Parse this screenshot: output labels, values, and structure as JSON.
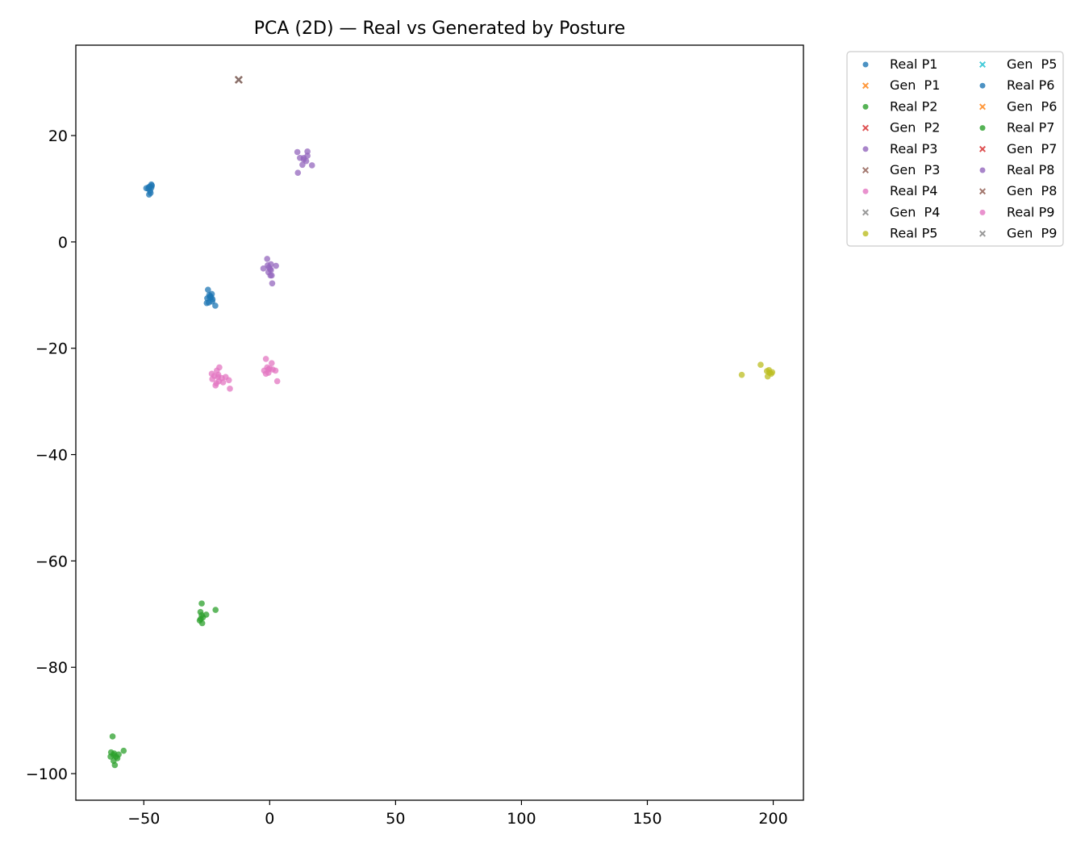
{
  "chart_data": {
    "type": "scatter",
    "title": "PCA (2D) — Real vs Generated by Posture",
    "xlabel": "",
    "ylabel": "",
    "xlim": [
      -77,
      212
    ],
    "ylim": [
      -105,
      37
    ],
    "xticks": [
      -50,
      0,
      50,
      100,
      150,
      200
    ],
    "yticks": [
      20,
      0,
      -20,
      -40,
      -60,
      -80,
      -100
    ],
    "grid": false,
    "legend_position": "outside-top-right",
    "series": [
      {
        "name": "Real P1",
        "marker": "circle",
        "color": "#1f77b4",
        "points": [
          [
            -49,
            10.1
          ],
          [
            -48,
            10.3
          ],
          [
            -47,
            10.8
          ],
          [
            -46.8,
            10.6
          ],
          [
            -47.5,
            9.6
          ],
          [
            -47.9,
            8.9
          ],
          [
            -47.3,
            9.2
          ],
          [
            -48.2,
            10
          ],
          [
            -47,
            10.2
          ],
          [
            -24.5,
            -9
          ],
          [
            -24,
            -10
          ],
          [
            -23.2,
            -10.4
          ],
          [
            -22.7,
            -10.8
          ],
          [
            -24.2,
            -11.4
          ],
          [
            -25,
            -11.5
          ],
          [
            -22.8,
            -11.2
          ],
          [
            -21.6,
            -12
          ],
          [
            -23.6,
            -10.2
          ],
          [
            -24.8,
            -10.6
          ],
          [
            -23,
            -9.8
          ]
        ]
      },
      {
        "name": "Gen  P1",
        "marker": "x",
        "color": "#ff7f0e",
        "points": [
          [
            -12.3,
            30.5
          ]
        ]
      },
      {
        "name": "Real P2",
        "marker": "circle",
        "color": "#2ca02c",
        "points": [
          [
            -27,
            -68
          ],
          [
            -21.5,
            -69.2
          ],
          [
            -27.5,
            -69.6
          ],
          [
            -26.5,
            -70.6
          ],
          [
            -25.2,
            -70.1
          ],
          [
            -27.8,
            -71.2
          ],
          [
            -26.8,
            -71.7
          ],
          [
            -27.4,
            -70.9
          ],
          [
            -62.4,
            -93
          ],
          [
            -58,
            -95.7
          ],
          [
            -63,
            -96
          ],
          [
            -62,
            -96.5
          ],
          [
            -61,
            -96.8
          ],
          [
            -60.5,
            -97.1
          ],
          [
            -62,
            -97.6
          ],
          [
            -61.5,
            -98.4
          ],
          [
            -63.2,
            -96.8
          ],
          [
            -60,
            -96.4
          ]
        ]
      },
      {
        "name": "Gen  P2",
        "marker": "x",
        "color": "#d62728",
        "points": [
          [
            -12.3,
            30.5
          ]
        ]
      },
      {
        "name": "Real P3",
        "marker": "circle",
        "color": "#9467bd",
        "points": [
          [
            11,
            16.9
          ],
          [
            15,
            17
          ],
          [
            12,
            15.8
          ],
          [
            13.5,
            15.5
          ],
          [
            14.5,
            15.2
          ],
          [
            13,
            14.5
          ],
          [
            16.8,
            14.4
          ],
          [
            11.2,
            13
          ],
          [
            15,
            16.2
          ],
          [
            -1,
            -3.2
          ],
          [
            -0.8,
            -4.4
          ],
          [
            0.5,
            -4.2
          ],
          [
            2.5,
            -4.5
          ],
          [
            -2.5,
            -5
          ],
          [
            0.5,
            -5.3
          ],
          [
            -0.5,
            -5.7
          ],
          [
            0.3,
            -6.3
          ],
          [
            0.8,
            -6.3
          ],
          [
            1,
            -7.8
          ],
          [
            -0.3,
            -4.8
          ]
        ]
      },
      {
        "name": "Gen  P3",
        "marker": "x",
        "color": "#8c564b",
        "points": [
          [
            -12.3,
            30.5
          ]
        ]
      },
      {
        "name": "Real P4",
        "marker": "circle",
        "color": "#e377c2",
        "points": [
          [
            -20,
            -23.6
          ],
          [
            -21,
            -24.2
          ],
          [
            -23,
            -24.8
          ],
          [
            -22,
            -25.2
          ],
          [
            -20.5,
            -25.4
          ],
          [
            -19,
            -25.6
          ],
          [
            -17.5,
            -25.4
          ],
          [
            -16.2,
            -26
          ],
          [
            -22.8,
            -25.8
          ],
          [
            -21.2,
            -26.6
          ],
          [
            -20.2,
            -26.2
          ],
          [
            -18.5,
            -26.4
          ],
          [
            -15.8,
            -27.6
          ],
          [
            -21.5,
            -27
          ],
          [
            -1.5,
            -22
          ],
          [
            0.8,
            -22.8
          ],
          [
            -1,
            -23.6
          ],
          [
            -2.2,
            -24.2
          ],
          [
            -0.5,
            -24.6
          ],
          [
            1.2,
            -24
          ],
          [
            2.3,
            -24.2
          ],
          [
            3,
            -26.2
          ],
          [
            0,
            -23.8
          ],
          [
            -1.5,
            -24.8
          ]
        ]
      },
      {
        "name": "Gen  P4",
        "marker": "x",
        "color": "#7f7f7f",
        "points": [
          [
            -12.3,
            30.5
          ]
        ]
      },
      {
        "name": "Real P5",
        "marker": "circle",
        "color": "#bcbd22",
        "points": [
          [
            187.5,
            -25
          ],
          [
            195,
            -23.1
          ],
          [
            197.5,
            -24.3
          ],
          [
            198.5,
            -24.6
          ],
          [
            199.2,
            -24.8
          ],
          [
            197.8,
            -25.3
          ],
          [
            198.3,
            -24.1
          ],
          [
            199.6,
            -24.5
          ]
        ]
      },
      {
        "name": "Gen  P5",
        "marker": "x",
        "color": "#17becf",
        "points": [
          [
            -12.3,
            30.5
          ]
        ]
      },
      {
        "name": "Real P6",
        "marker": "circle",
        "color": "#1f77b4",
        "points": [
          [
            -47.6,
            10.4
          ],
          [
            -23.8,
            -10.5
          ]
        ]
      },
      {
        "name": "Gen  P6",
        "marker": "x",
        "color": "#ff7f0e",
        "points": [
          [
            -12.3,
            30.5
          ]
        ]
      },
      {
        "name": "Real P7",
        "marker": "circle",
        "color": "#2ca02c",
        "points": [
          [
            -27,
            -70.2
          ],
          [
            -61.8,
            -96.2
          ]
        ]
      },
      {
        "name": "Gen  P7",
        "marker": "x",
        "color": "#d62728",
        "points": [
          [
            -12.3,
            30.5
          ]
        ]
      },
      {
        "name": "Real P8",
        "marker": "circle",
        "color": "#9467bd",
        "points": [
          [
            13.5,
            15.8
          ],
          [
            0.2,
            -5.1
          ]
        ]
      },
      {
        "name": "Gen  P8",
        "marker": "x",
        "color": "#8c564b",
        "points": [
          [
            -12.3,
            30.5
          ]
        ]
      },
      {
        "name": "Real P9",
        "marker": "circle",
        "color": "#e377c2",
        "points": [
          [
            -20.4,
            -25
          ],
          [
            -0.5,
            -24
          ]
        ]
      },
      {
        "name": "Gen  P9",
        "marker": "x",
        "color": "#7f7f7f",
        "points": [
          [
            -12.3,
            30.5
          ]
        ]
      }
    ]
  }
}
